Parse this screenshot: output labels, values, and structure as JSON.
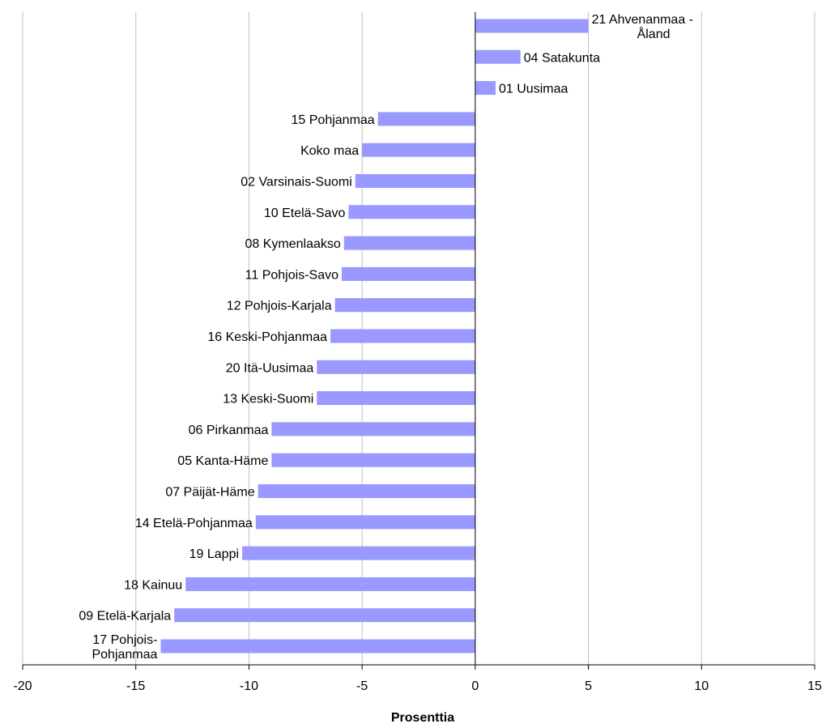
{
  "chart_data": {
    "type": "bar",
    "orientation": "horizontal",
    "categories": [
      "21 Ahvenanmaa - Åland",
      "04 Satakunta",
      "01 Uusimaa",
      "15 Pohjanmaa",
      "Koko maa",
      "02 Varsinais-Suomi",
      "10 Etelä-Savo",
      "08 Kymenlaakso",
      "11 Pohjois-Savo",
      "12 Pohjois-Karjala",
      "16 Keski-Pohjanmaa",
      "20 Itä-Uusimaa",
      "13 Keski-Suomi",
      "06 Pirkanmaa",
      "05 Kanta-Häme",
      "07 Päijät-Häme",
      "14 Etelä-Pohjanmaa",
      "19 Lappi",
      "18 Kainuu",
      "09 Etelä-Karjala",
      "17 Pohjois-Pohjanmaa"
    ],
    "values": [
      5.0,
      2.0,
      0.9,
      -4.3,
      -5.0,
      -5.3,
      -5.6,
      -5.8,
      -5.9,
      -6.2,
      -6.4,
      -7.0,
      -7.0,
      -9.0,
      -9.0,
      -9.6,
      -9.7,
      -10.3,
      -12.8,
      -13.3,
      -13.9
    ],
    "xlabel": "Prosenttia",
    "ylabel": "",
    "xlim": [
      -20,
      15
    ],
    "x_ticks": [
      -20,
      -15,
      -10,
      -5,
      0,
      5,
      10,
      15
    ],
    "grid": "vertical",
    "legend": "none",
    "bar_color": "#9999FF"
  }
}
